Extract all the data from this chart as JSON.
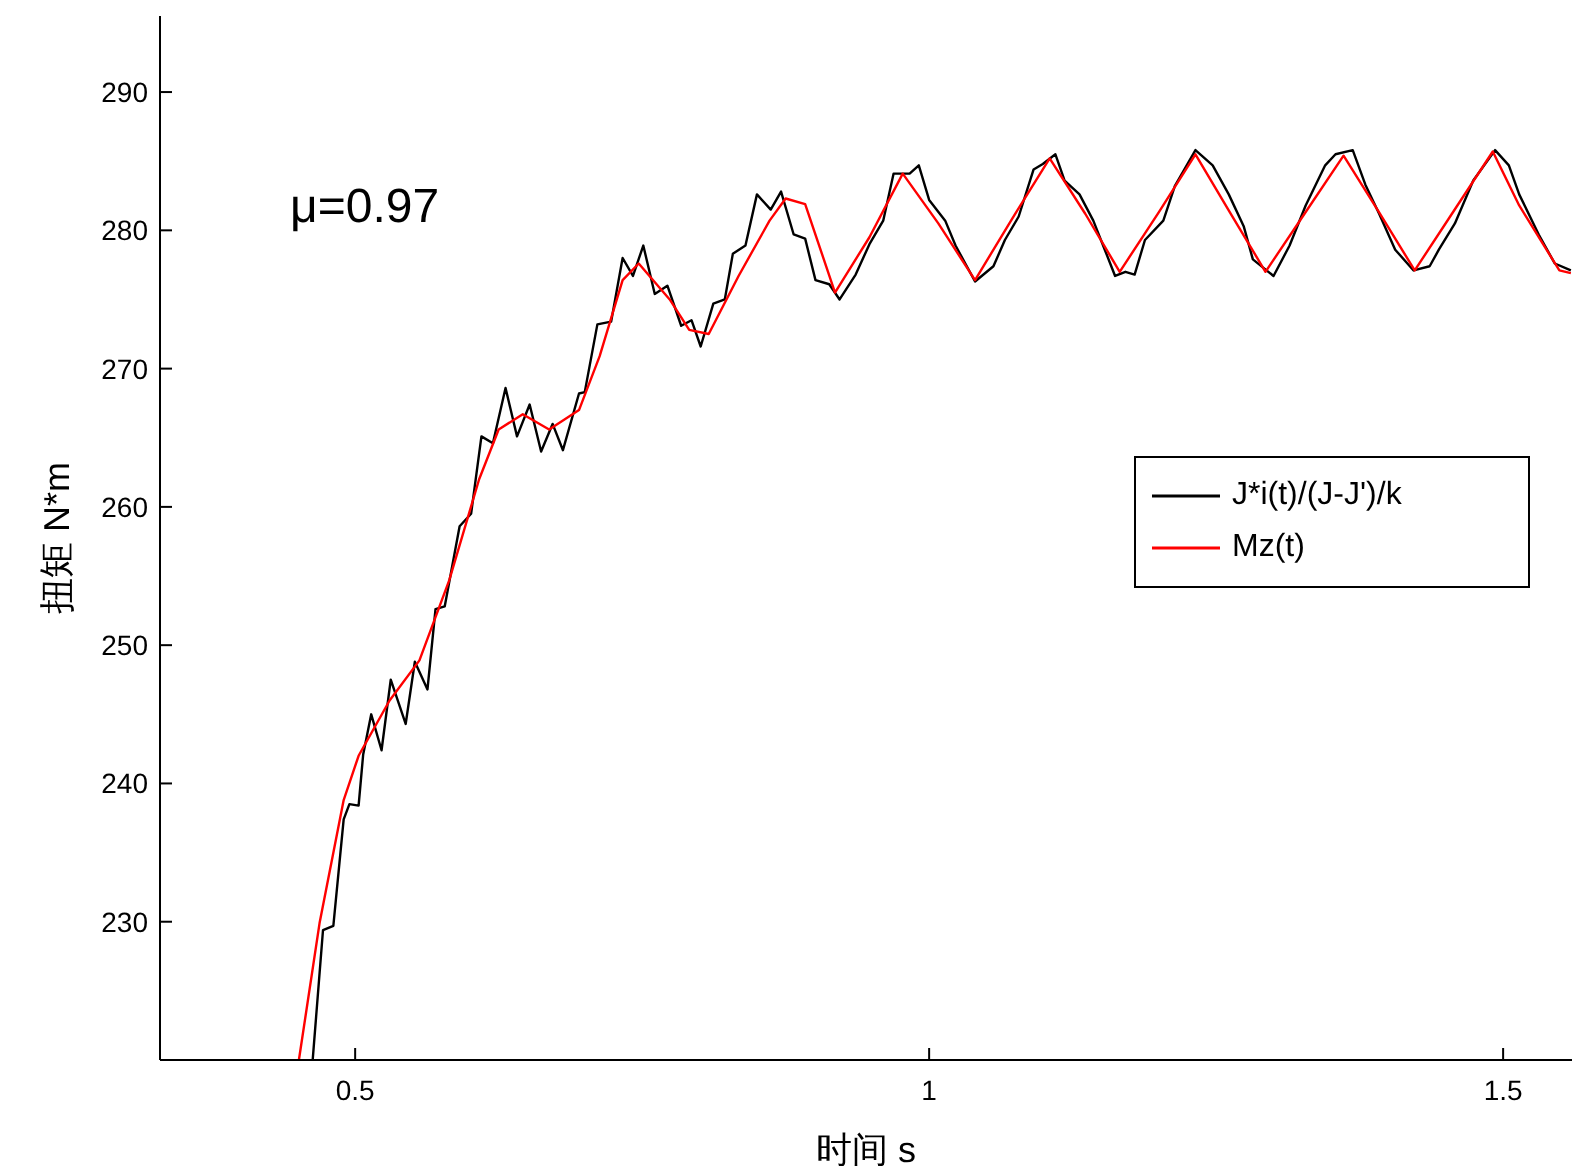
{
  "chart_data": {
    "type": "line",
    "xlabel": "时间 s",
    "ylabel": "扭矩 N*m",
    "annotations": [
      "μ=0.97"
    ],
    "xlim": [
      0.33,
      1.56
    ],
    "ylim": [
      220,
      295.5
    ],
    "xticks": [
      0.5,
      1,
      1.5
    ],
    "yticks": [
      230,
      240,
      250,
      260,
      270,
      280,
      290
    ],
    "grid": false,
    "legend": "right",
    "marker": "none",
    "line_style": "solid",
    "series": [
      {
        "name": "J*i(t)/(J-J')/k",
        "color": "#000000",
        "x": [
          0.463,
          0.472,
          0.481,
          0.49,
          0.495,
          0.503,
          0.507,
          0.514,
          0.523,
          0.531,
          0.544,
          0.552,
          0.563,
          0.57,
          0.578,
          0.591,
          0.601,
          0.61,
          0.62,
          0.631,
          0.641,
          0.652,
          0.662,
          0.672,
          0.681,
          0.695,
          0.7,
          0.711,
          0.723,
          0.733,
          0.742,
          0.751,
          0.761,
          0.772,
          0.784,
          0.793,
          0.801,
          0.812,
          0.822,
          0.829,
          0.84,
          0.85,
          0.862,
          0.871,
          0.882,
          0.892,
          0.901,
          0.913,
          0.922,
          0.936,
          0.948,
          0.96,
          0.969,
          0.983,
          0.991,
          1.0,
          1.014,
          1.023,
          1.04,
          1.056,
          1.066,
          1.078,
          1.091,
          1.099,
          1.11,
          1.118,
          1.131,
          1.143,
          1.153,
          1.162,
          1.171,
          1.179,
          1.188,
          1.204,
          1.214,
          1.232,
          1.247,
          1.261,
          1.274,
          1.282,
          1.3,
          1.314,
          1.328,
          1.345,
          1.354,
          1.369,
          1.38,
          1.392,
          1.406,
          1.422,
          1.436,
          1.444,
          1.458,
          1.474,
          1.493,
          1.505,
          1.514,
          1.531,
          1.545,
          1.559
        ],
        "values": [
          220.0,
          229.4,
          229.7,
          237.4,
          238.5,
          238.4,
          242.1,
          245.0,
          242.4,
          247.5,
          244.3,
          248.8,
          246.8,
          252.6,
          252.8,
          258.6,
          259.5,
          265.1,
          264.6,
          268.6,
          265.1,
          267.4,
          264.0,
          266.0,
          264.1,
          268.2,
          268.3,
          273.2,
          273.4,
          278.0,
          276.7,
          278.9,
          275.4,
          276.0,
          273.1,
          273.5,
          271.6,
          274.7,
          275.0,
          278.3,
          278.9,
          282.6,
          281.5,
          282.8,
          279.7,
          279.4,
          276.4,
          276.1,
          275.0,
          276.8,
          279.0,
          280.7,
          284.1,
          284.1,
          284.7,
          282.2,
          280.7,
          278.9,
          276.3,
          277.4,
          279.3,
          281.0,
          284.4,
          284.8,
          285.5,
          283.6,
          282.6,
          280.7,
          278.6,
          276.7,
          277.0,
          276.8,
          279.3,
          280.7,
          283.2,
          285.8,
          284.7,
          282.6,
          280.3,
          277.9,
          276.7,
          278.9,
          281.8,
          284.7,
          285.5,
          285.8,
          283.3,
          281.2,
          278.6,
          277.1,
          277.4,
          278.6,
          280.5,
          283.6,
          285.8,
          284.7,
          282.6,
          279.7,
          277.6,
          277.1
        ]
      },
      {
        "name": "Mz(t)",
        "color": "#ff0000",
        "x": [
          0.451,
          0.469,
          0.49,
          0.503,
          0.53,
          0.556,
          0.582,
          0.608,
          0.625,
          0.646,
          0.669,
          0.695,
          0.713,
          0.733,
          0.747,
          0.774,
          0.791,
          0.808,
          0.834,
          0.861,
          0.875,
          0.892,
          0.918,
          0.948,
          0.977,
          1.008,
          1.04,
          1.072,
          1.105,
          1.136,
          1.166,
          1.2,
          1.232,
          1.262,
          1.293,
          1.327,
          1.361,
          1.392,
          1.423,
          1.457,
          1.491,
          1.514,
          1.549,
          1.559
        ],
        "values": [
          220.0,
          229.9,
          238.8,
          242.0,
          246.0,
          248.9,
          254.7,
          262.0,
          265.6,
          266.7,
          265.6,
          267.0,
          270.9,
          276.4,
          277.6,
          275.0,
          272.8,
          272.5,
          276.7,
          280.7,
          282.3,
          281.9,
          275.5,
          279.5,
          284.1,
          280.5,
          276.4,
          280.8,
          285.2,
          281.2,
          277.0,
          281.3,
          285.5,
          281.3,
          277.0,
          281.2,
          285.4,
          281.3,
          277.1,
          281.4,
          285.7,
          281.8,
          277.1,
          276.9
        ]
      }
    ]
  }
}
